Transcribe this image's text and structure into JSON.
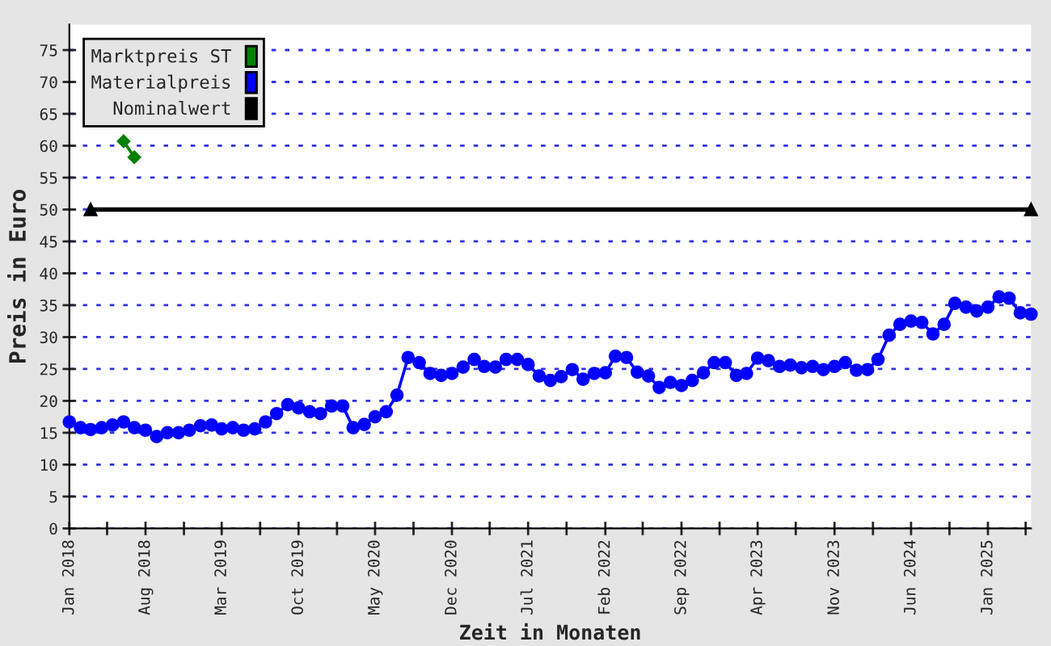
{
  "chart_data": {
    "type": "line",
    "xlabel": "Zeit in Monaten",
    "ylabel": "Preis in Euro",
    "x": [
      "2018-01",
      "2018-02",
      "2018-03",
      "2018-04",
      "2018-05",
      "2018-06",
      "2018-07",
      "2018-08",
      "2018-09",
      "2018-10",
      "2018-11",
      "2018-12",
      "2019-01",
      "2019-02",
      "2019-03",
      "2019-04",
      "2019-05",
      "2019-06",
      "2019-07",
      "2019-08",
      "2019-09",
      "2019-10",
      "2019-11",
      "2019-12",
      "2020-01",
      "2020-02",
      "2020-03",
      "2020-04",
      "2020-05",
      "2020-06",
      "2020-07",
      "2020-08",
      "2020-09",
      "2020-10",
      "2020-11",
      "2020-12",
      "2021-01",
      "2021-02",
      "2021-03",
      "2021-04",
      "2021-05",
      "2021-06",
      "2021-07",
      "2021-08",
      "2021-09",
      "2021-10",
      "2021-11",
      "2021-12",
      "2022-01",
      "2022-02",
      "2022-03",
      "2022-04",
      "2022-05",
      "2022-06",
      "2022-07",
      "2022-08",
      "2022-09",
      "2022-10",
      "2022-11",
      "2022-12",
      "2023-01",
      "2023-02",
      "2023-03",
      "2023-04",
      "2023-05",
      "2023-06",
      "2023-07",
      "2023-08",
      "2023-09",
      "2023-10",
      "2023-11",
      "2023-12",
      "2024-01",
      "2024-02",
      "2024-03",
      "2024-04",
      "2024-05",
      "2024-06",
      "2024-07",
      "2024-08",
      "2024-09",
      "2024-10",
      "2024-11",
      "2024-12",
      "2025-01",
      "2025-02",
      "2025-03",
      "2025-04",
      "2025-05"
    ],
    "series": [
      {
        "name": "Marktpreis ST",
        "color": "#008000",
        "marker": "diamond",
        "x": [
          "2018-06",
          "2018-07"
        ],
        "values": [
          60.7,
          58.2
        ]
      },
      {
        "name": "Materialpreis",
        "color": "#0000ff",
        "marker": "circle",
        "values": [
          16.7,
          15.8,
          15.5,
          15.8,
          16.2,
          16.7,
          15.8,
          15.4,
          14.4,
          15.0,
          15.0,
          15.4,
          16.1,
          16.2,
          15.6,
          15.8,
          15.4,
          15.6,
          16.7,
          18.0,
          19.4,
          18.9,
          18.3,
          18.0,
          19.2,
          19.2,
          15.8,
          16.3,
          17.5,
          18.3,
          20.9,
          26.8,
          26.0,
          24.3,
          24.0,
          24.3,
          25.3,
          26.5,
          25.4,
          25.3,
          26.5,
          26.5,
          25.7,
          23.9,
          23.2,
          23.8,
          24.9,
          23.4,
          24.3,
          24.4,
          27.0,
          26.8,
          24.5,
          23.9,
          22.1,
          22.9,
          22.4,
          23.2,
          24.4,
          26.0,
          26.0,
          24.0,
          24.3,
          26.7,
          26.3,
          25.4,
          25.6,
          25.2,
          25.4,
          24.9,
          25.4,
          26.0,
          24.8,
          24.9,
          26.5,
          30.3,
          32.0,
          32.5,
          32.3,
          30.5,
          32.0,
          35.3,
          34.7,
          34.1,
          34.7,
          36.3,
          36.1,
          33.8,
          33.6
        ]
      },
      {
        "name": "Nominalwert",
        "color": "#000000",
        "marker": "triangle",
        "x": [
          "2018-03",
          "2025-05"
        ],
        "values": [
          50,
          50
        ]
      }
    ],
    "xlim": [
      "2018-01",
      "2025-05"
    ],
    "xticks": [
      {
        "value": "2018-01",
        "label": "Jan 2018"
      },
      {
        "value": "2018-04-16",
        "label": null
      },
      {
        "value": "2018-08",
        "label": "Aug 2018"
      },
      {
        "value": "2018-11-16",
        "label": null
      },
      {
        "value": "2019-03",
        "label": "Mar 2019"
      },
      {
        "value": "2019-06-16",
        "label": null
      },
      {
        "value": "2019-10",
        "label": "Oct 2019"
      },
      {
        "value": "2020-01-16",
        "label": null
      },
      {
        "value": "2020-05",
        "label": "May 2020"
      },
      {
        "value": "2020-08-16",
        "label": null
      },
      {
        "value": "2020-12",
        "label": "Dec 2020"
      },
      {
        "value": "2021-03-16",
        "label": null
      },
      {
        "value": "2021-07",
        "label": "Jul 2021"
      },
      {
        "value": "2021-10-16",
        "label": null
      },
      {
        "value": "2022-02",
        "label": "Feb 2022"
      },
      {
        "value": "2022-05-16",
        "label": null
      },
      {
        "value": "2022-09",
        "label": "Sep 2022"
      },
      {
        "value": "2022-12-16",
        "label": null
      },
      {
        "value": "2023-04",
        "label": "Apr 2023"
      },
      {
        "value": "2023-07-16",
        "label": null
      },
      {
        "value": "2023-11",
        "label": "Nov 2023"
      },
      {
        "value": "2024-02-16",
        "label": null
      },
      {
        "value": "2024-06",
        "label": "Jun 2024"
      },
      {
        "value": "2024-09-16",
        "label": null
      },
      {
        "value": "2025-01",
        "label": "Jan 2025"
      },
      {
        "value": "2025-04-16",
        "label": null
      }
    ],
    "ylim": [
      0,
      79
    ],
    "yticks": [
      0,
      5,
      10,
      15,
      20,
      25,
      30,
      35,
      40,
      45,
      50,
      55,
      60,
      65,
      70,
      75
    ],
    "grid": "y",
    "legend": "top left",
    "line_style": "solid"
  }
}
